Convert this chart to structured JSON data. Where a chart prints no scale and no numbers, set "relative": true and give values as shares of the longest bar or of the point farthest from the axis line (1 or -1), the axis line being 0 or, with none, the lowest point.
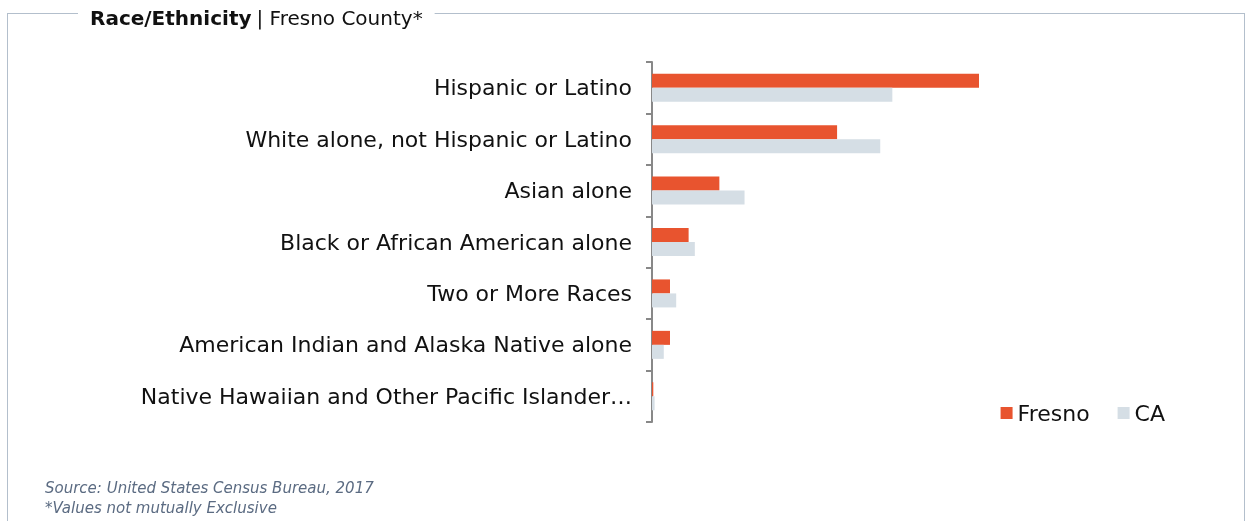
{
  "chart_data": {
    "type": "bar",
    "orientation": "horizontal",
    "relative": true,
    "title": "Race/Ethnicity",
    "subtitle": "| Fresno County*",
    "categories": [
      "Hispanic or Latino",
      "White alone, not Hispanic or Latino",
      "Asian alone",
      "Black or African American alone",
      "Two or More Races",
      "American Indian and Alaska Native alone",
      "Native Hawaiian and Other Pacific Islander…"
    ],
    "series": [
      {
        "name": "Fresno",
        "color": "#e8542f",
        "values": [
          1,
          0.566,
          0.206,
          0.112,
          0.055,
          0.055,
          0.004
        ]
      },
      {
        "name": "CA",
        "color": "#d5dee5",
        "values": [
          0.735,
          0.698,
          0.283,
          0.131,
          0.074,
          0.036,
          0.008
        ]
      }
    ],
    "legend": "bottom right",
    "annotations": [
      "Source: United States Census Bureau, 2017",
      "*Values not mutually Exclusive"
    ]
  }
}
